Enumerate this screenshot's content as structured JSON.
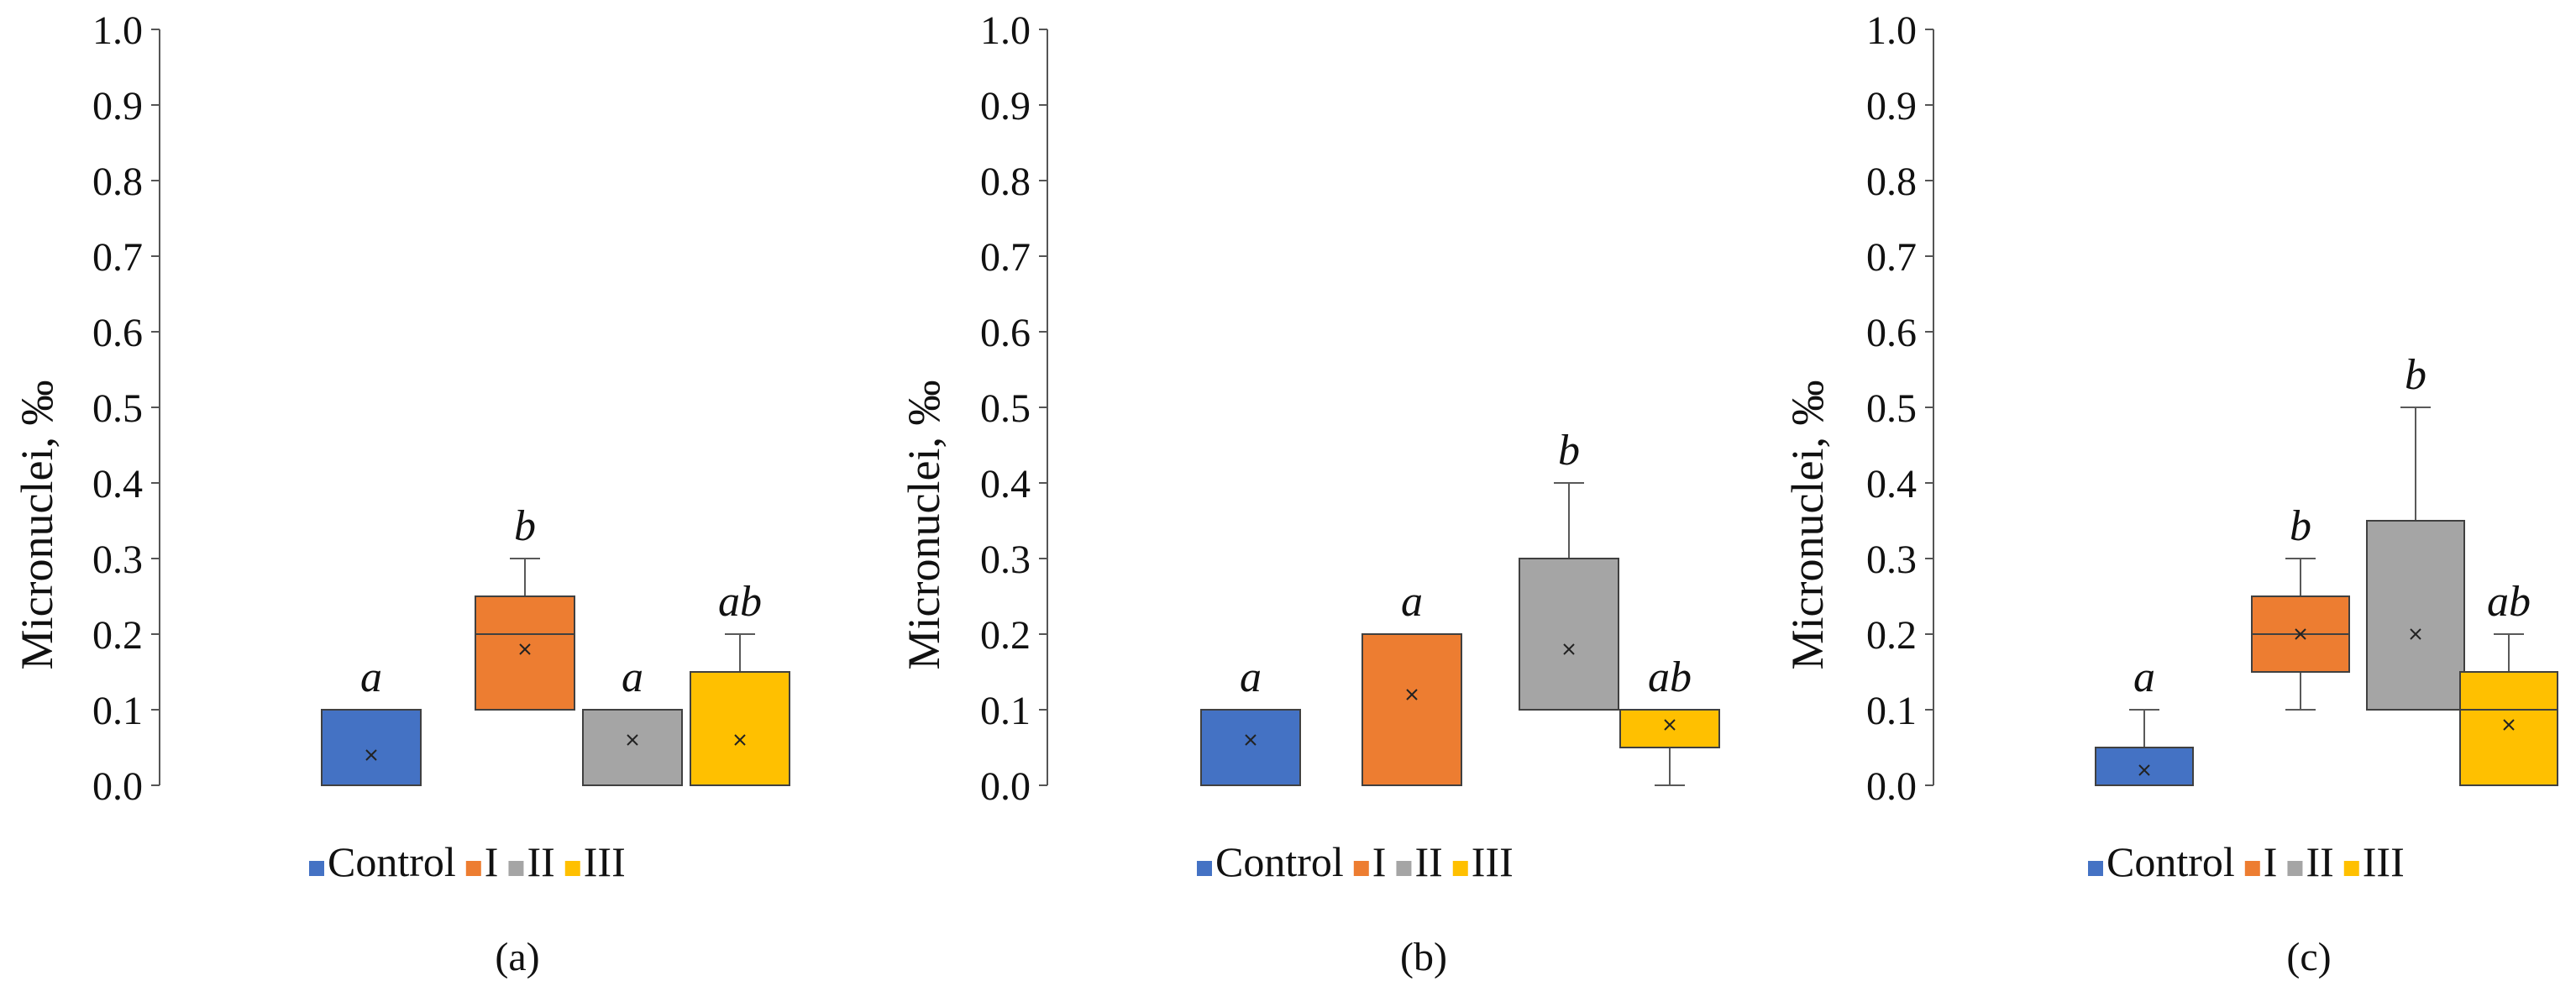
{
  "chart_data": [
    {
      "type": "box",
      "panel_label": "(a)",
      "ylabel": "Micronuclei, ‰",
      "ylim": [
        0.0,
        1.0
      ],
      "yticks": [
        "0.0",
        "0.1",
        "0.2",
        "0.3",
        "0.4",
        "0.5",
        "0.6",
        "0.7",
        "0.8",
        "0.9",
        "1.0"
      ],
      "legend": [
        "Control",
        "I",
        "II",
        "III"
      ],
      "groups": [
        {
          "name": "Control",
          "color": "#4472C4",
          "min": 0.0,
          "q1": 0.0,
          "median": null,
          "q3": 0.1,
          "max": 0.1,
          "mean": 0.04,
          "letter": "a"
        },
        {
          "name": "I",
          "color": "#ED7D31",
          "min": 0.1,
          "q1": 0.1,
          "median": 0.2,
          "q3": 0.25,
          "max": 0.3,
          "mean": 0.18,
          "letter": "b"
        },
        {
          "name": "II",
          "color": "#A5A5A5",
          "min": 0.0,
          "q1": 0.0,
          "median": null,
          "q3": 0.1,
          "max": 0.1,
          "mean": 0.06,
          "letter": "a"
        },
        {
          "name": "III",
          "color": "#FFC000",
          "min": 0.0,
          "q1": 0.0,
          "median": null,
          "q3": 0.15,
          "max": 0.2,
          "mean": 0.06,
          "letter": "ab"
        }
      ]
    },
    {
      "type": "box",
      "panel_label": "(b)",
      "ylabel": "Micronuclei, ‰",
      "ylim": [
        0.0,
        1.0
      ],
      "yticks": [
        "0.0",
        "0.1",
        "0.2",
        "0.3",
        "0.4",
        "0.5",
        "0.6",
        "0.7",
        "0.8",
        "0.9",
        "1.0"
      ],
      "legend": [
        "Control",
        "I",
        "II",
        "III"
      ],
      "groups": [
        {
          "name": "Control",
          "color": "#4472C4",
          "min": 0.0,
          "q1": 0.0,
          "median": null,
          "q3": 0.1,
          "max": 0.1,
          "mean": 0.06,
          "letter": "a"
        },
        {
          "name": "I",
          "color": "#ED7D31",
          "min": 0.0,
          "q1": 0.0,
          "median": null,
          "q3": 0.2,
          "max": 0.2,
          "mean": 0.12,
          "letter": "a"
        },
        {
          "name": "II",
          "color": "#A5A5A5",
          "min": 0.1,
          "q1": 0.1,
          "median": null,
          "q3": 0.3,
          "max": 0.4,
          "mean": 0.18,
          "letter": "b"
        },
        {
          "name": "III",
          "color": "#FFC000",
          "min": 0.0,
          "q1": 0.05,
          "median": null,
          "q3": 0.1,
          "max": 0.1,
          "mean": 0.08,
          "letter": "ab"
        }
      ]
    },
    {
      "type": "box",
      "panel_label": "(c)",
      "ylabel": "Micronuclei, ‰",
      "ylim": [
        0.0,
        1.0
      ],
      "yticks": [
        "0.0",
        "0.1",
        "0.2",
        "0.3",
        "0.4",
        "0.5",
        "0.6",
        "0.7",
        "0.8",
        "0.9",
        "1.0"
      ],
      "legend": [
        "Control",
        "I",
        "II",
        "III"
      ],
      "groups": [
        {
          "name": "Control",
          "color": "#4472C4",
          "min": 0.0,
          "q1": 0.0,
          "median": null,
          "q3": 0.05,
          "max": 0.1,
          "mean": 0.02,
          "letter": "a"
        },
        {
          "name": "I",
          "color": "#ED7D31",
          "min": 0.1,
          "q1": 0.15,
          "median": 0.2,
          "q3": 0.25,
          "max": 0.3,
          "mean": 0.2,
          "letter": "b"
        },
        {
          "name": "II",
          "color": "#A5A5A5",
          "min": 0.1,
          "q1": 0.1,
          "median": null,
          "q3": 0.35,
          "max": 0.5,
          "mean": 0.2,
          "letter": "b"
        },
        {
          "name": "III",
          "color": "#FFC000",
          "min": 0.0,
          "q1": 0.0,
          "median": 0.1,
          "q3": 0.15,
          "max": 0.2,
          "mean": 0.08,
          "letter": "ab"
        }
      ]
    }
  ]
}
